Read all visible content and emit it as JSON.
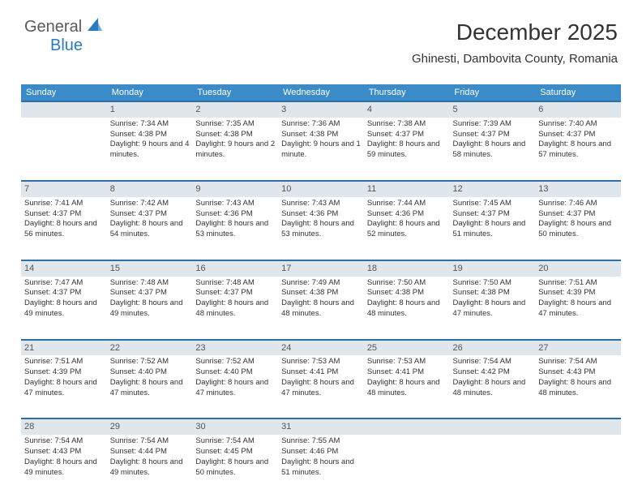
{
  "logo": {
    "general": "General",
    "blue": "Blue"
  },
  "header": {
    "month": "December 2025",
    "location": "Ghinesti, Dambovita County, Romania"
  },
  "daynames": [
    "Sunday",
    "Monday",
    "Tuesday",
    "Wednesday",
    "Thursday",
    "Friday",
    "Saturday"
  ],
  "colors": {
    "header_row": "#3b8bc9",
    "daynum_bg": "#dfe6ec",
    "rule": "#2f6fa3",
    "text": "#333333"
  },
  "weeks": [
    {
      "nums": [
        "",
        "1",
        "2",
        "3",
        "4",
        "5",
        "6"
      ],
      "cells": [
        "",
        "Sunrise: 7:34 AM\nSunset: 4:38 PM\nDaylight: 9 hours and 4 minutes.",
        "Sunrise: 7:35 AM\nSunset: 4:38 PM\nDaylight: 9 hours and 2 minutes.",
        "Sunrise: 7:36 AM\nSunset: 4:38 PM\nDaylight: 9 hours and 1 minute.",
        "Sunrise: 7:38 AM\nSunset: 4:37 PM\nDaylight: 8 hours and 59 minutes.",
        "Sunrise: 7:39 AM\nSunset: 4:37 PM\nDaylight: 8 hours and 58 minutes.",
        "Sunrise: 7:40 AM\nSunset: 4:37 PM\nDaylight: 8 hours and 57 minutes."
      ]
    },
    {
      "nums": [
        "7",
        "8",
        "9",
        "10",
        "11",
        "12",
        "13"
      ],
      "cells": [
        "Sunrise: 7:41 AM\nSunset: 4:37 PM\nDaylight: 8 hours and 56 minutes.",
        "Sunrise: 7:42 AM\nSunset: 4:37 PM\nDaylight: 8 hours and 54 minutes.",
        "Sunrise: 7:43 AM\nSunset: 4:36 PM\nDaylight: 8 hours and 53 minutes.",
        "Sunrise: 7:43 AM\nSunset: 4:36 PM\nDaylight: 8 hours and 53 minutes.",
        "Sunrise: 7:44 AM\nSunset: 4:36 PM\nDaylight: 8 hours and 52 minutes.",
        "Sunrise: 7:45 AM\nSunset: 4:37 PM\nDaylight: 8 hours and 51 minutes.",
        "Sunrise: 7:46 AM\nSunset: 4:37 PM\nDaylight: 8 hours and 50 minutes."
      ]
    },
    {
      "nums": [
        "14",
        "15",
        "16",
        "17",
        "18",
        "19",
        "20"
      ],
      "cells": [
        "Sunrise: 7:47 AM\nSunset: 4:37 PM\nDaylight: 8 hours and 49 minutes.",
        "Sunrise: 7:48 AM\nSunset: 4:37 PM\nDaylight: 8 hours and 49 minutes.",
        "Sunrise: 7:48 AM\nSunset: 4:37 PM\nDaylight: 8 hours and 48 minutes.",
        "Sunrise: 7:49 AM\nSunset: 4:38 PM\nDaylight: 8 hours and 48 minutes.",
        "Sunrise: 7:50 AM\nSunset: 4:38 PM\nDaylight: 8 hours and 48 minutes.",
        "Sunrise: 7:50 AM\nSunset: 4:38 PM\nDaylight: 8 hours and 47 minutes.",
        "Sunrise: 7:51 AM\nSunset: 4:39 PM\nDaylight: 8 hours and 47 minutes."
      ]
    },
    {
      "nums": [
        "21",
        "22",
        "23",
        "24",
        "25",
        "26",
        "27"
      ],
      "cells": [
        "Sunrise: 7:51 AM\nSunset: 4:39 PM\nDaylight: 8 hours and 47 minutes.",
        "Sunrise: 7:52 AM\nSunset: 4:40 PM\nDaylight: 8 hours and 47 minutes.",
        "Sunrise: 7:52 AM\nSunset: 4:40 PM\nDaylight: 8 hours and 47 minutes.",
        "Sunrise: 7:53 AM\nSunset: 4:41 PM\nDaylight: 8 hours and 47 minutes.",
        "Sunrise: 7:53 AM\nSunset: 4:41 PM\nDaylight: 8 hours and 48 minutes.",
        "Sunrise: 7:54 AM\nSunset: 4:42 PM\nDaylight: 8 hours and 48 minutes.",
        "Sunrise: 7:54 AM\nSunset: 4:43 PM\nDaylight: 8 hours and 48 minutes."
      ]
    },
    {
      "nums": [
        "28",
        "29",
        "30",
        "31",
        "",
        "",
        ""
      ],
      "cells": [
        "Sunrise: 7:54 AM\nSunset: 4:43 PM\nDaylight: 8 hours and 49 minutes.",
        "Sunrise: 7:54 AM\nSunset: 4:44 PM\nDaylight: 8 hours and 49 minutes.",
        "Sunrise: 7:54 AM\nSunset: 4:45 PM\nDaylight: 8 hours and 50 minutes.",
        "Sunrise: 7:55 AM\nSunset: 4:46 PM\nDaylight: 8 hours and 51 minutes.",
        "",
        "",
        ""
      ]
    }
  ]
}
